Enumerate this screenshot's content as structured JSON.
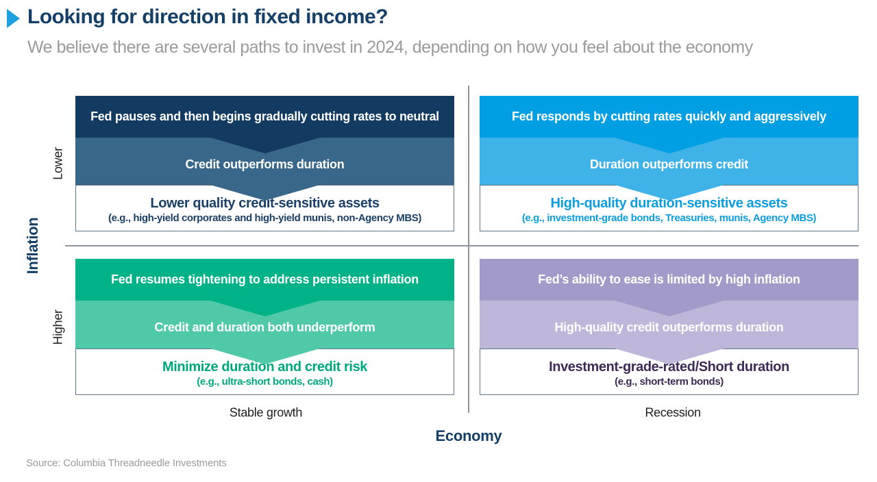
{
  "header": {
    "title": "Looking for direction in fixed income?",
    "subtitle": "We believe there are several paths to invest in 2024, depending on how you feel about the economy"
  },
  "matrix": {
    "y_axis": {
      "label": "Inflation",
      "top": "Lower",
      "bottom": "Higher"
    },
    "x_axis": {
      "label": "Economy",
      "left": "Stable growth",
      "right": "Recession"
    }
  },
  "quadrants": [
    {
      "position": "lower-inflation-stable-growth",
      "fed_action": "Fed pauses and then begins gradually cutting rates to neutral",
      "market_outcome": "Credit outperforms duration",
      "recommendation": "Lower quality credit-sensitive assets",
      "examples": "(e.g., high-yield corporates and high-yield munis, non-Agency MBS)",
      "colors": {
        "band1": "#133a60",
        "band2": "#396789",
        "accent": "#1b3f66"
      }
    },
    {
      "position": "lower-inflation-recession",
      "fed_action": "Fed responds by cutting rates quickly and aggressively",
      "market_outcome": "Duration outperforms credit",
      "recommendation": "High-quality duration-sensitive assets",
      "examples": "(e.g., investment-grade bonds, Treasuries, munis, Agency MBS)",
      "colors": {
        "band1": "#009fe3",
        "band2": "#3fb2e8",
        "accent": "#0d9ddf"
      }
    },
    {
      "position": "higher-inflation-stable-growth",
      "fed_action": "Fed resumes tightening to address persistent inflation",
      "market_outcome": "Credit and duration both underperform",
      "recommendation": "Minimize duration and credit risk",
      "examples": "(e.g., ultra-short bonds, cash)",
      "colors": {
        "band1": "#00b287",
        "band2": "#50c9a9",
        "accent": "#00a87e"
      }
    },
    {
      "position": "higher-inflation-recession",
      "fed_action": "Fed’s ability to ease is limited by high inflation",
      "market_outcome": "High-quality credit outperforms duration",
      "recommendation": "Investment-grade-rated/Short duration",
      "examples": "(e.g., short-term bonds)",
      "colors": {
        "band1": "#a29bc9",
        "band2": "#bfb7da",
        "accent": "#3e2a56"
      }
    }
  ],
  "source": "Source: Columbia Threadneedle Investments",
  "colors": {
    "title": "#153f66",
    "subtitle": "#9b9b9b",
    "marker": "#1e9fe0",
    "divider": "#8d939a"
  }
}
